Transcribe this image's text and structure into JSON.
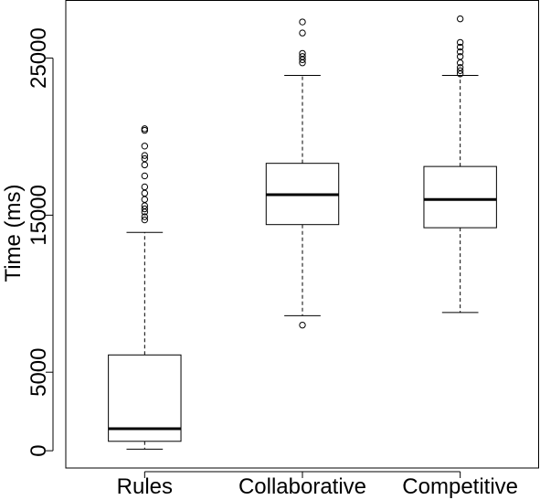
{
  "chart_data": {
    "type": "boxplot",
    "title": "",
    "xlabel": "",
    "ylabel": "Time (ms)",
    "ylim": [
      -1100,
      28700
    ],
    "y_ticks": [
      0,
      5000,
      15000,
      25000
    ],
    "y_tick_labels": [
      "0",
      "5000",
      "15000",
      "25000"
    ],
    "categories": [
      "Rules",
      "Collaborative",
      "Competitive"
    ],
    "boxes": [
      {
        "category": "Rules",
        "whisker_low": 100,
        "q1": 600,
        "median": 1400,
        "q3": 6100,
        "whisker_high": 13900,
        "outliers": [
          14700,
          14900,
          15200,
          15400,
          15600,
          16000,
          16400,
          16800,
          17500,
          18200,
          18600,
          18800,
          19400,
          20400,
          20500
        ]
      },
      {
        "category": "Collaborative",
        "whisker_low": 8600,
        "q1": 14400,
        "median": 16300,
        "q3": 18300,
        "whisker_high": 23900,
        "outliers": [
          8000,
          24700,
          24900,
          25100,
          25300,
          26600,
          27300
        ]
      },
      {
        "category": "Competitive",
        "whisker_low": 8800,
        "q1": 14200,
        "median": 16000,
        "q3": 18100,
        "whisker_high": 23900,
        "outliers": [
          24000,
          24200,
          24400,
          24700,
          25100,
          25400,
          25700,
          26000,
          27500
        ]
      }
    ],
    "grid": false,
    "legend": "none"
  }
}
